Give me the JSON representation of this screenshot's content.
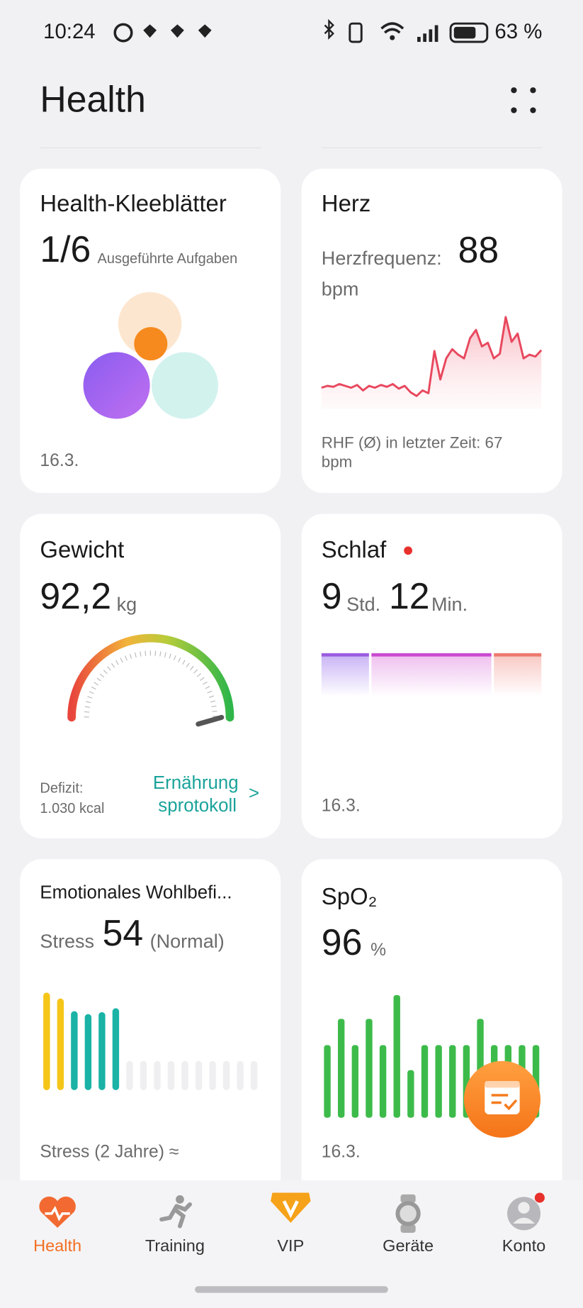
{
  "status_bar": {
    "time": "10:24",
    "battery": "63 %"
  },
  "header": {
    "title": "Health"
  },
  "cards": [
    {
      "title": "Health-Kleeblätter",
      "value": "1/6",
      "caption": "Ausgeführte Aufgaben",
      "date": "16.3."
    },
    {
      "title": "Herz",
      "label": "Herzfrequenz:",
      "value": 88,
      "unit": "bpm",
      "footer": "RHF (Ø) in letzter Zeit: 67",
      "footer_unit": "bpm",
      "chart": {
        "type": "line",
        "ylim": [
          0,
          100
        ],
        "color": "#e8485e",
        "values": [
          23,
          25,
          24,
          27,
          25,
          23,
          26,
          20,
          25,
          23,
          26,
          24,
          27,
          22,
          25,
          18,
          14,
          20,
          17,
          63,
          32,
          55,
          65,
          59,
          55,
          77,
          86,
          68,
          72,
          55,
          60,
          100,
          73,
          82,
          55,
          59,
          57,
          64
        ]
      }
    },
    {
      "title": "Gewicht",
      "value": "92,2",
      "unit": "kg",
      "deficit_label": "Defizit:",
      "deficit_value": "1.030 kcal",
      "link": [
        "Ernährung",
        "sprotokoll"
      ],
      "link_arrow": ">"
    },
    {
      "title": "Schlaf",
      "hours": 9,
      "hours_unit": "Std.",
      "minutes": 12,
      "minutes_unit": "Min.",
      "date": "16.3."
    },
    {
      "title": "Emotionales Wohlbefi...",
      "label": "Stress",
      "value": 54,
      "status": "(Normal)",
      "footer": "Stress (2 Jahre) ≈",
      "chart": {
        "type": "bar",
        "ylim": [
          0,
          100
        ],
        "values": [
          100,
          94,
          81,
          78,
          80,
          84,
          null,
          null,
          null,
          null,
          null,
          null,
          null,
          null,
          null,
          null
        ],
        "colors": [
          "#f5c518",
          "#f5c518",
          "#1ab3a6",
          "#1ab3a6",
          "#1ab3a6",
          "#1ab3a6"
        ]
      }
    },
    {
      "title": "SpO₂",
      "value": 96,
      "unit": "%",
      "date": "16.3.",
      "chart": {
        "type": "bar",
        "ylim": [
          0,
          100
        ],
        "color": "#3dbb4a",
        "values": [
          58,
          79,
          58,
          79,
          58,
          98,
          38,
          58,
          58,
          58,
          58,
          79,
          58,
          58,
          58,
          58
        ]
      }
    }
  ],
  "nav": [
    "Health",
    "Training",
    "VIP",
    "Geräte",
    "Konto"
  ]
}
